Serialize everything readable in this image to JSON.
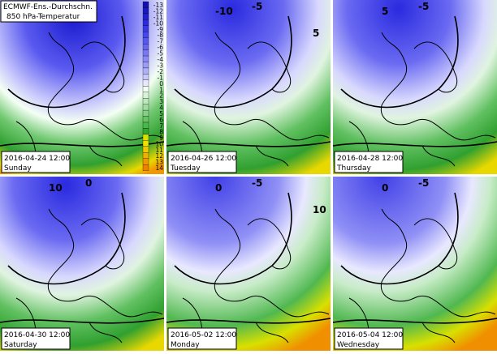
{
  "header": {
    "title": "ECMWF-Ens.-Durchschn.",
    "subtitle": "850 hPa-Temperatur"
  },
  "legend": {
    "labels": [
      -13,
      -12,
      -11,
      -10,
      -9,
      -8,
      -7,
      -6,
      -5,
      -4,
      -3,
      -2,
      -1,
      0,
      1,
      2,
      3,
      4,
      5,
      6,
      7,
      8,
      9,
      10,
      11,
      12,
      13,
      14
    ],
    "colors": [
      "#1010b0",
      "#1818c0",
      "#2020d0",
      "#2a2ae0",
      "#3838e8",
      "#4646ee",
      "#5656f0",
      "#6666f2",
      "#7878f4",
      "#8a8af6",
      "#9c9cf8",
      "#b0b0fa",
      "#c8c8fc",
      "#e8e8ff",
      "#f4fff4",
      "#d8f4d8",
      "#bce8bc",
      "#a0dca0",
      "#84d084",
      "#66c466",
      "#48b848",
      "#30a830",
      "#d8e000",
      "#f0e000",
      "#f0c800",
      "#f0b000",
      "#f09800",
      "#f08000"
    ]
  },
  "panels": [
    {
      "date": "2016-04-24 12:00",
      "day": "Sunday",
      "contours": []
    },
    {
      "date": "2016-04-26 12:00",
      "day": "Tuesday",
      "contours": [
        "-5",
        "-10",
        "5"
      ]
    },
    {
      "date": "2016-04-28 12:00",
      "day": "Thursday",
      "contours": [
        "-5",
        "5"
      ]
    },
    {
      "date": "2016-04-30 12:00",
      "day": "Saturday",
      "contours": [
        "0",
        "10"
      ]
    },
    {
      "date": "2016-05-02 12:00",
      "day": "Monday",
      "contours": [
        "-5",
        "0",
        "10"
      ]
    },
    {
      "date": "2016-05-04 12:00",
      "day": "Wednesday",
      "contours": [
        "-5",
        "0"
      ]
    }
  ]
}
